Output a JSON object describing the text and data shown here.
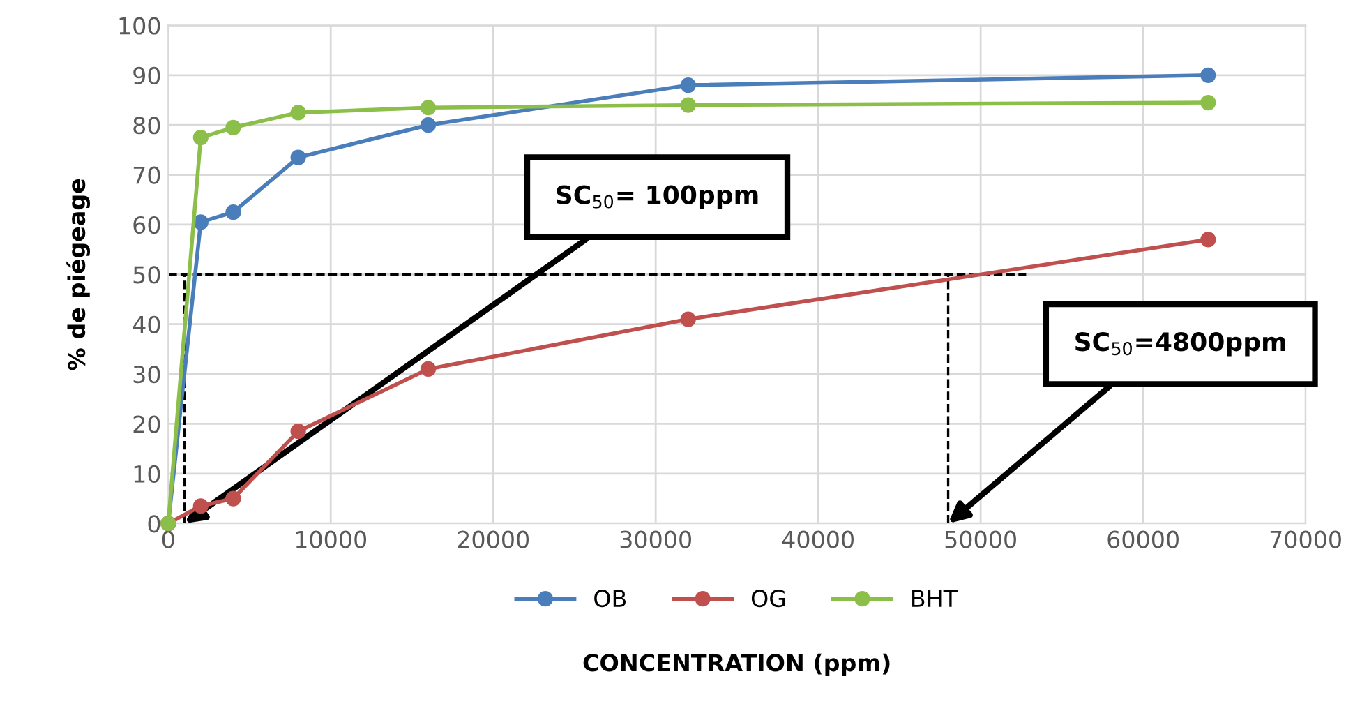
{
  "chart_data": {
    "type": "line",
    "xlabel": "CONCENTRATION (ppm)",
    "ylabel": "% de piégeage",
    "x": [
      0,
      2000,
      4000,
      8000,
      16000,
      32000,
      64000
    ],
    "series": [
      {
        "name": "OB",
        "color": "#4a7ebb",
        "values": [
          0,
          60.5,
          62.5,
          73.5,
          80,
          88,
          90
        ]
      },
      {
        "name": "OG",
        "color": "#c0504d",
        "values": [
          0,
          3.5,
          5,
          18.5,
          31,
          41,
          57
        ]
      },
      {
        "name": "BHT",
        "color": "#8cbf4a",
        "values": [
          0,
          77.5,
          79.5,
          82.5,
          83.5,
          84,
          84.5
        ]
      }
    ],
    "xlim": [
      0,
      70000
    ],
    "xticks": [
      0,
      10000,
      20000,
      30000,
      40000,
      50000,
      60000,
      70000
    ],
    "ylim": [
      0,
      100
    ],
    "yticks": [
      0,
      10,
      20,
      30,
      40,
      50,
      60,
      70,
      80,
      90,
      100
    ],
    "ref_lines": [
      {
        "axis": "y",
        "value": 50,
        "color": "#000000",
        "line_style": "dashed"
      },
      {
        "axis": "x",
        "value": 1000,
        "color": "#000000",
        "line_style": "dashed"
      },
      {
        "axis": "x",
        "value": 48000,
        "color": "#000000",
        "line_style": "dashed"
      }
    ],
    "annotations": [
      "SC$_{50}$= 100ppm",
      "SC$_{50}$=4800ppm"
    ],
    "grid": true,
    "legend": "bottom",
    "marker": "circle",
    "line_style": "solid"
  }
}
